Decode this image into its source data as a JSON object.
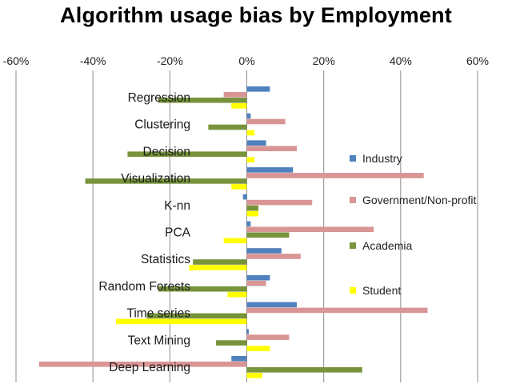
{
  "chart_data": {
    "type": "bar",
    "orientation": "horizontal",
    "title": "Algorithm  usage bias by Employment",
    "xlabel": "",
    "ylabel": "",
    "xlim": [
      -0.6,
      0.6
    ],
    "xticks": [
      "-60%",
      "-40%",
      "-20%",
      "0%",
      "20%",
      "40%",
      "60%"
    ],
    "xtick_values": [
      -0.6,
      -0.4,
      -0.2,
      0,
      0.2,
      0.4,
      0.6
    ],
    "grid": "vertical",
    "legend_position": "right",
    "categories": [
      "Regression",
      "Clustering",
      "Decision",
      "Visualization",
      "K-nn",
      "PCA",
      "Statistics",
      "Random Forests",
      "Time series",
      "Text Mining",
      "Deep Learning"
    ],
    "series": [
      {
        "name": "Industry",
        "color": "#4f81bd",
        "values": [
          0.06,
          0.01,
          0.05,
          0.12,
          -0.01,
          0.01,
          0.09,
          0.06,
          0.13,
          0.005,
          -0.04
        ]
      },
      {
        "name": "Government/Non-profit",
        "color": "#d99594",
        "values": [
          -0.06,
          0.1,
          0.13,
          0.46,
          0.17,
          0.33,
          0.14,
          0.05,
          0.47,
          0.11,
          -0.54
        ]
      },
      {
        "name": "Academia",
        "color": "#77933c",
        "values": [
          -0.23,
          -0.1,
          -0.31,
          -0.42,
          0.03,
          0.11,
          -0.14,
          -0.23,
          -0.26,
          -0.08,
          0.3
        ]
      },
      {
        "name": "Student",
        "color": "#ffff00",
        "values": [
          -0.04,
          0.02,
          0.02,
          -0.04,
          0.03,
          -0.06,
          -0.15,
          -0.05,
          -0.34,
          0.06,
          0.04
        ]
      }
    ]
  }
}
